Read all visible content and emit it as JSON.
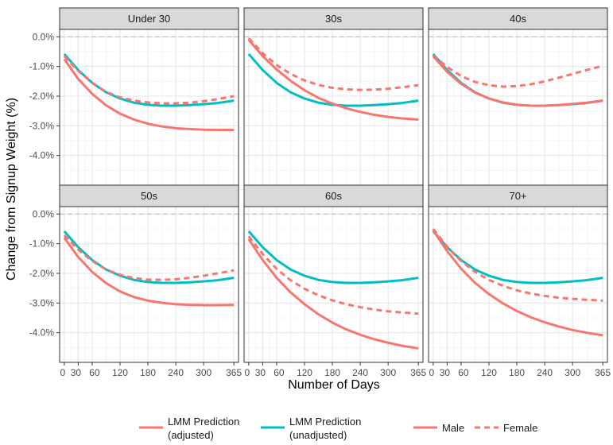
{
  "chart_data": {
    "type": "line",
    "facets": [
      "Under 30",
      "30s",
      "40s",
      "50s",
      "60s",
      "70+"
    ],
    "xlabel": "Number of Days",
    "ylabel": "Change from Signup Weight (%)",
    "xlim": [
      -10,
      375
    ],
    "ylim": [
      -5.0,
      0.25
    ],
    "x_ticks": [
      0,
      30,
      60,
      120,
      180,
      240,
      300,
      365
    ],
    "x_tick_labels": [
      "0",
      "30",
      "60",
      "120",
      "180",
      "240",
      "300",
      "365"
    ],
    "y_ticks": [
      0,
      -1,
      -2,
      -3,
      -4
    ],
    "y_tick_labels": [
      "0.0%",
      "-1.0%",
      "-2.0%",
      "-3.0%",
      "-4.0%"
    ],
    "reference_line": 0,
    "x": [
      0,
      30,
      60,
      90,
      120,
      150,
      180,
      210,
      240,
      270,
      300,
      330,
      365
    ],
    "colors": {
      "adjusted": "#F8766D",
      "unadjusted": "#00BFC4"
    },
    "series": [
      {
        "facet": "Under 30",
        "lines": [
          {
            "name": "LMM Prediction (unadjusted)",
            "color": "#00BFC4",
            "dash": "solid",
            "values": [
              -0.58,
              -1.12,
              -1.55,
              -1.87,
              -2.08,
              -2.22,
              -2.29,
              -2.32,
              -2.32,
              -2.3,
              -2.27,
              -2.23,
              -2.15
            ]
          },
          {
            "name": "Male",
            "color": "#F8766D",
            "dash": "solid",
            "values": [
              -0.75,
              -1.42,
              -1.92,
              -2.31,
              -2.59,
              -2.79,
              -2.93,
              -3.02,
              -3.08,
              -3.11,
              -3.13,
              -3.14,
              -3.14
            ]
          },
          {
            "name": "Female",
            "color": "#F8766D",
            "dash": "dashed",
            "values": [
              -0.65,
              -1.15,
              -1.55,
              -1.86,
              -2.04,
              -2.15,
              -2.21,
              -2.24,
              -2.24,
              -2.22,
              -2.17,
              -2.1,
              -2.0
            ]
          }
        ]
      },
      {
        "facet": "30s",
        "lines": [
          {
            "name": "LMM Prediction (unadjusted)",
            "color": "#00BFC4",
            "dash": "solid",
            "values": [
              -0.58,
              -1.12,
              -1.55,
              -1.87,
              -2.08,
              -2.22,
              -2.29,
              -2.32,
              -2.32,
              -2.3,
              -2.27,
              -2.23,
              -2.15
            ]
          },
          {
            "name": "Male",
            "color": "#F8766D",
            "dash": "solid",
            "values": [
              -0.1,
              -0.65,
              -1.1,
              -1.48,
              -1.8,
              -2.06,
              -2.25,
              -2.41,
              -2.53,
              -2.63,
              -2.7,
              -2.75,
              -2.79
            ]
          },
          {
            "name": "Female",
            "color": "#F8766D",
            "dash": "dashed",
            "values": [
              -0.05,
              -0.55,
              -0.95,
              -1.25,
              -1.47,
              -1.62,
              -1.72,
              -1.77,
              -1.79,
              -1.78,
              -1.75,
              -1.7,
              -1.63
            ]
          }
        ]
      },
      {
        "facet": "40s",
        "lines": [
          {
            "name": "LMM Prediction (unadjusted)",
            "color": "#00BFC4",
            "dash": "solid",
            "values": [
              -0.58,
              -1.12,
              -1.55,
              -1.87,
              -2.08,
              -2.22,
              -2.29,
              -2.32,
              -2.32,
              -2.3,
              -2.27,
              -2.23,
              -2.15
            ]
          },
          {
            "name": "Male",
            "color": "#F8766D",
            "dash": "solid",
            "values": [
              -0.65,
              -1.18,
              -1.58,
              -1.88,
              -2.08,
              -2.21,
              -2.29,
              -2.32,
              -2.32,
              -2.3,
              -2.26,
              -2.22,
              -2.15
            ]
          },
          {
            "name": "Female",
            "color": "#F8766D",
            "dash": "dashed",
            "values": [
              -0.62,
              -1.02,
              -1.32,
              -1.52,
              -1.63,
              -1.68,
              -1.66,
              -1.6,
              -1.5,
              -1.38,
              -1.25,
              -1.12,
              -0.98
            ]
          }
        ]
      },
      {
        "facet": "50s",
        "lines": [
          {
            "name": "LMM Prediction (unadjusted)",
            "color": "#00BFC4",
            "dash": "solid",
            "values": [
              -0.58,
              -1.12,
              -1.55,
              -1.87,
              -2.08,
              -2.22,
              -2.29,
              -2.32,
              -2.32,
              -2.3,
              -2.27,
              -2.23,
              -2.15
            ]
          },
          {
            "name": "Male",
            "color": "#F8766D",
            "dash": "solid",
            "values": [
              -0.8,
              -1.45,
              -1.95,
              -2.33,
              -2.61,
              -2.8,
              -2.92,
              -2.99,
              -3.04,
              -3.06,
              -3.07,
              -3.07,
              -3.06
            ]
          },
          {
            "name": "Female",
            "color": "#F8766D",
            "dash": "dashed",
            "values": [
              -0.72,
              -1.2,
              -1.58,
              -1.87,
              -2.05,
              -2.16,
              -2.21,
              -2.22,
              -2.2,
              -2.15,
              -2.08,
              -2.0,
              -1.9
            ]
          }
        ]
      },
      {
        "facet": "60s",
        "lines": [
          {
            "name": "LMM Prediction (unadjusted)",
            "color": "#00BFC4",
            "dash": "solid",
            "values": [
              -0.58,
              -1.12,
              -1.55,
              -1.87,
              -2.08,
              -2.22,
              -2.29,
              -2.32,
              -2.32,
              -2.3,
              -2.27,
              -2.23,
              -2.15
            ]
          },
          {
            "name": "Male",
            "color": "#F8766D",
            "dash": "solid",
            "values": [
              -0.85,
              -1.55,
              -2.15,
              -2.64,
              -3.04,
              -3.38,
              -3.66,
              -3.89,
              -4.07,
              -4.22,
              -4.34,
              -4.44,
              -4.53
            ]
          },
          {
            "name": "Female",
            "color": "#F8766D",
            "dash": "dashed",
            "values": [
              -0.75,
              -1.35,
              -1.85,
              -2.23,
              -2.52,
              -2.74,
              -2.91,
              -3.04,
              -3.14,
              -3.22,
              -3.28,
              -3.32,
              -3.36
            ]
          }
        ]
      },
      {
        "facet": "70+",
        "lines": [
          {
            "name": "LMM Prediction (unadjusted)",
            "color": "#00BFC4",
            "dash": "solid",
            "values": [
              -0.58,
              -1.12,
              -1.55,
              -1.87,
              -2.08,
              -2.22,
              -2.29,
              -2.32,
              -2.32,
              -2.3,
              -2.27,
              -2.23,
              -2.15
            ]
          },
          {
            "name": "Male",
            "color": "#F8766D",
            "dash": "solid",
            "values": [
              -0.55,
              -1.25,
              -1.84,
              -2.32,
              -2.7,
              -3.01,
              -3.27,
              -3.48,
              -3.65,
              -3.79,
              -3.91,
              -4.0,
              -4.09
            ]
          },
          {
            "name": "Female",
            "color": "#F8766D",
            "dash": "dashed",
            "values": [
              -0.5,
              -1.1,
              -1.58,
              -1.95,
              -2.22,
              -2.42,
              -2.57,
              -2.68,
              -2.76,
              -2.82,
              -2.86,
              -2.89,
              -2.92
            ]
          }
        ]
      }
    ],
    "legend": {
      "position": "bottom",
      "entries": [
        {
          "label_line1": "LMM Prediction",
          "label_line2": "(adjusted)",
          "color": "#F8766D",
          "dash": "solid"
        },
        {
          "label_line1": "LMM Prediction",
          "label_line2": "(unadjusted)",
          "color": "#00BFC4",
          "dash": "solid"
        },
        {
          "label_line1": "Male",
          "label_line2": "",
          "color": "#F8766D",
          "dash": "solid"
        },
        {
          "label_line1": "Female",
          "label_line2": "",
          "color": "#F8766D",
          "dash": "dashed"
        }
      ]
    }
  }
}
